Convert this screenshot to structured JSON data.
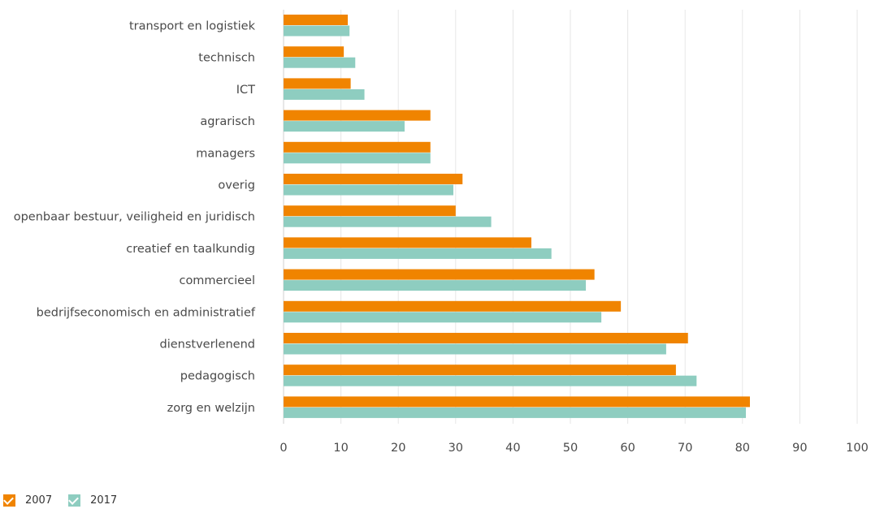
{
  "chart_data": {
    "type": "bar",
    "orientation": "horizontal",
    "categories": [
      "transport en logistiek",
      "technisch",
      "ICT",
      "agrarisch",
      "managers",
      "overig",
      "openbaar bestuur, veiligheid en juridisch",
      "creatief en taalkundig",
      "commercieel",
      "bedrijfseconomisch en administratief",
      "dienstverlenend",
      "pedagogisch",
      "zorg en welzijn"
    ],
    "series": [
      {
        "name": "2007",
        "color": "#f08400",
        "values": [
          11.2,
          10.5,
          11.7,
          25.6,
          25.6,
          31.2,
          30.0,
          43.2,
          54.2,
          58.8,
          70.5,
          68.4,
          81.3
        ]
      },
      {
        "name": "2017",
        "color": "#8ecdc0",
        "values": [
          11.5,
          12.5,
          14.1,
          21.1,
          25.6,
          29.6,
          36.2,
          46.7,
          52.7,
          55.4,
          66.7,
          72.0,
          80.6
        ]
      }
    ],
    "xlim": [
      0,
      100
    ],
    "xticks": [
      "0",
      "10",
      "20",
      "30",
      "40",
      "50",
      "60",
      "70",
      "80",
      "90",
      "100"
    ],
    "grid": true,
    "legend_position": "bottom-left"
  }
}
